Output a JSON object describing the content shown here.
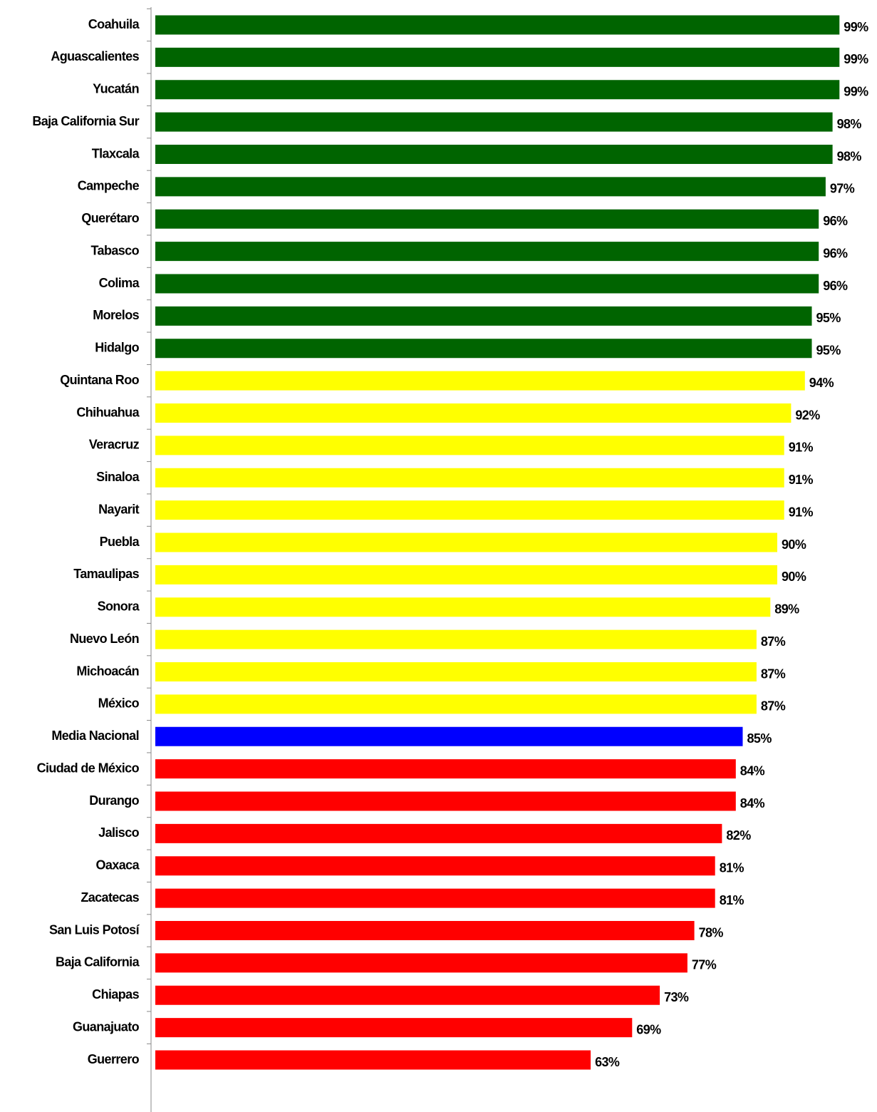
{
  "chart_data": {
    "type": "hbar",
    "categories": [
      "Coahuila",
      "Aguascalientes",
      "Yucatán",
      "Baja California Sur",
      "Tlaxcala",
      "Campeche",
      "Querétaro",
      "Tabasco",
      "Colima",
      "Morelos",
      "Hidalgo",
      "Quintana Roo",
      "Chihuahua",
      "Veracruz",
      "Sinaloa",
      "Nayarit",
      "Puebla",
      "Tamaulipas",
      "Sonora",
      "Nuevo León",
      "Michoacán",
      "México",
      "Media Nacional",
      "Ciudad de México",
      "Durango",
      "Jalisco",
      "Oaxaca",
      "Zacatecas",
      "San Luis Potosí",
      "Baja California",
      "Chiapas",
      "Guanajuato",
      "Guerrero"
    ],
    "values": [
      99,
      99,
      99,
      98,
      98,
      97,
      96,
      96,
      96,
      95,
      95,
      94,
      92,
      91,
      91,
      91,
      90,
      90,
      89,
      87,
      87,
      87,
      85,
      84,
      84,
      82,
      81,
      81,
      78,
      77,
      73,
      69,
      63
    ],
    "value_labels": [
      "99%",
      "99%",
      "99%",
      "98%",
      "98%",
      "97%",
      "96%",
      "96%",
      "96%",
      "95%",
      "95%",
      "94%",
      "92%",
      "91%",
      "91%",
      "91%",
      "90%",
      "90%",
      "89%",
      "87%",
      "87%",
      "87%",
      "85%",
      "84%",
      "84%",
      "82%",
      "81%",
      "81%",
      "78%",
      "77%",
      "73%",
      "69%",
      "63%"
    ],
    "colors": [
      "#006400",
      "#006400",
      "#006400",
      "#006400",
      "#006400",
      "#006400",
      "#006400",
      "#006400",
      "#006400",
      "#006400",
      "#006400",
      "#ffff00",
      "#ffff00",
      "#ffff00",
      "#ffff00",
      "#ffff00",
      "#ffff00",
      "#ffff00",
      "#ffff00",
      "#ffff00",
      "#ffff00",
      "#ffff00",
      "#0000ff",
      "#ff0000",
      "#ff0000",
      "#ff0000",
      "#ff0000",
      "#ff0000",
      "#ff0000",
      "#ff0000",
      "#ff0000",
      "#ff0000",
      "#ff0000"
    ],
    "xlim": [
      0,
      100
    ]
  }
}
